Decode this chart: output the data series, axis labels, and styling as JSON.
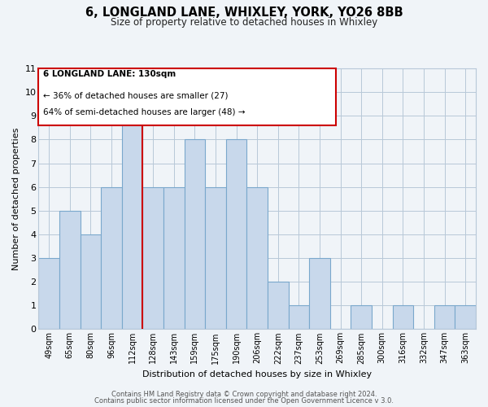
{
  "title": "6, LONGLAND LANE, WHIXLEY, YORK, YO26 8BB",
  "subtitle": "Size of property relative to detached houses in Whixley",
  "xlabel": "Distribution of detached houses by size in Whixley",
  "ylabel": "Number of detached properties",
  "footer1": "Contains HM Land Registry data © Crown copyright and database right 2024.",
  "footer2": "Contains public sector information licensed under the Open Government Licence v 3.0.",
  "bin_labels": [
    "49sqm",
    "65sqm",
    "80sqm",
    "96sqm",
    "112sqm",
    "128sqm",
    "143sqm",
    "159sqm",
    "175sqm",
    "190sqm",
    "206sqm",
    "222sqm",
    "237sqm",
    "253sqm",
    "269sqm",
    "285sqm",
    "300sqm",
    "316sqm",
    "332sqm",
    "347sqm",
    "363sqm"
  ],
  "bar_heights": [
    3,
    5,
    4,
    6,
    9,
    6,
    6,
    8,
    6,
    8,
    6,
    2,
    1,
    3,
    0,
    1,
    0,
    1,
    0,
    1,
    1
  ],
  "bar_color": "#c8d8eb",
  "bar_edgecolor": "#7aa8cc",
  "marker_label": "128sqm",
  "marker_index": 5,
  "marker_color": "#cc0000",
  "ylim": [
    0,
    11
  ],
  "yticks": [
    0,
    1,
    2,
    3,
    4,
    5,
    6,
    7,
    8,
    9,
    10,
    11
  ],
  "annotation_title": "6 LONGLAND LANE: 130sqm",
  "annotation_line1": "← 36% of detached houses are smaller (27)",
  "annotation_line2": "64% of semi-detached houses are larger (48) →",
  "bg_color": "#f0f4f8",
  "grid_color": "#b8c8d8"
}
